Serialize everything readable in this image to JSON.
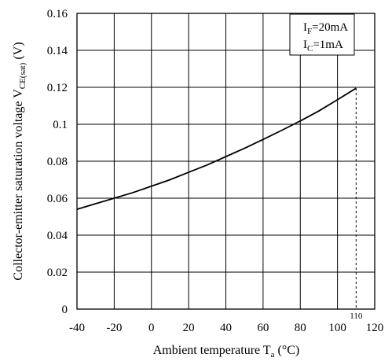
{
  "chart_data": {
    "type": "line",
    "xlabel": {
      "prefix": "Ambient temperature T",
      "sub": "a",
      "suffix": " (°C)"
    },
    "ylabel": {
      "prefix": "Collector-emitter saturation voltage V",
      "sub": "CE(sat)",
      "suffix": "  (V)"
    },
    "xlim": [
      -40,
      120
    ],
    "ylim": [
      0,
      0.16
    ],
    "xticks": [
      -40,
      -20,
      0,
      20,
      40,
      60,
      80,
      100,
      120
    ],
    "xtick_labels": [
      "-40",
      "-20",
      "0",
      "20",
      "40",
      "60",
      "80",
      "100",
      "120"
    ],
    "yticks": [
      0,
      0.02,
      0.04,
      0.06,
      0.08,
      0.1,
      0.12,
      0.14,
      0.16
    ],
    "ytick_labels": [
      "0",
      "0.02",
      "0.04",
      "0.06",
      "0.08",
      "0.1",
      "0.12",
      "0.14",
      "0.16"
    ],
    "grid": true,
    "series": [
      {
        "x": [
          -40,
          -30,
          -20,
          -10,
          0,
          10,
          20,
          30,
          40,
          50,
          60,
          70,
          80,
          90,
          100,
          110
        ],
        "y": [
          0.054,
          0.057,
          0.06,
          0.063,
          0.0665,
          0.07,
          0.074,
          0.078,
          0.0825,
          0.087,
          0.0918,
          0.0967,
          0.1018,
          0.1072,
          0.1133,
          0.1195
        ]
      }
    ],
    "marker_line": {
      "x": 110,
      "label": "110"
    },
    "annotations": [
      {
        "prefix": "I",
        "sub": "F",
        "suffix": "=20mA"
      },
      {
        "prefix": "I",
        "sub": "C",
        "suffix": "=1mA"
      }
    ],
    "color": "#000000"
  }
}
